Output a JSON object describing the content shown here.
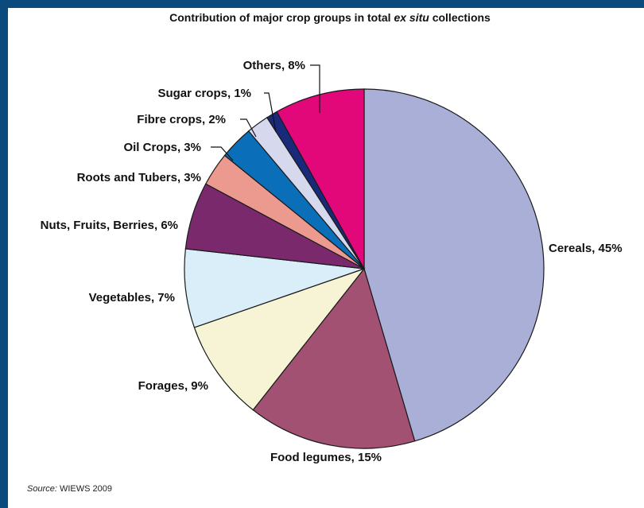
{
  "page": {
    "title_parts": [
      "Contribution of major crop groups in total ",
      "ex situ",
      " collections"
    ],
    "source_label": "Source:",
    "source_value": "WIEWS 2009"
  },
  "chart_data": {
    "type": "pie",
    "title": "Contribution of major crop groups in total ex situ collections",
    "slices": [
      {
        "label": "Cereals, 45%",
        "name": "Cereals",
        "value": 45,
        "color": "#a9afd6"
      },
      {
        "label": "Food legumes, 15%",
        "name": "Food legumes",
        "value": 15,
        "color": "#a25173"
      },
      {
        "label": "Forages, 9%",
        "name": "Forages",
        "value": 9,
        "color": "#f7f4d6"
      },
      {
        "label": "Vegetables, 7%",
        "name": "Vegetables",
        "value": 7,
        "color": "#d9eef8"
      },
      {
        "label": "Nuts, Fruits, Berries, 6%",
        "name": "Nuts, Fruits, Berries",
        "value": 6,
        "color": "#7a2a6c"
      },
      {
        "label": "Roots and Tubers, 3%",
        "name": "Roots and Tubers",
        "value": 3,
        "color": "#ec9a90"
      },
      {
        "label": "Oil Crops, 3%",
        "name": "Oil Crops",
        "value": 3,
        "color": "#0a6fb8"
      },
      {
        "label": "Fibre crops, 2%",
        "name": "Fibre crops",
        "value": 2,
        "color": "#d6d9ee"
      },
      {
        "label": "Sugar crops, 1%",
        "name": "Sugar crops",
        "value": 1,
        "color": "#1a2a7a"
      },
      {
        "label": "Others, 8%",
        "name": "Others",
        "value": 8,
        "color": "#e2087a"
      }
    ]
  }
}
